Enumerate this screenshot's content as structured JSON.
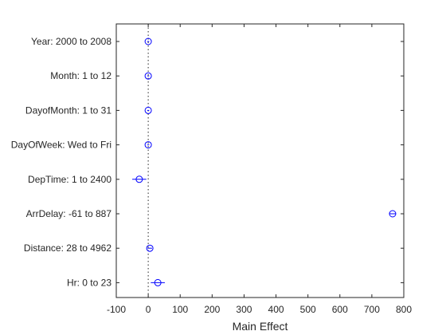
{
  "chart_data": {
    "type": "scatter",
    "title": "",
    "xlabel": "Main Effect",
    "ylabel": "",
    "xlim": [
      -100,
      800
    ],
    "xticks": [
      -100,
      0,
      100,
      200,
      300,
      400,
      500,
      600,
      700,
      800
    ],
    "xtick_labels": [
      "-100",
      "0",
      "100",
      "200",
      "300",
      "400",
      "500",
      "600",
      "700",
      "800"
    ],
    "reference_line_x": 0,
    "grid": false,
    "marker_color": "#0000ff",
    "points": [
      {
        "label": "Year: 2000 to 2008",
        "value": 0,
        "low": -3,
        "high": 3
      },
      {
        "label": "Month: 1 to 12",
        "value": 0,
        "low": -3,
        "high": 3
      },
      {
        "label": "DayofMonth: 1 to 31",
        "value": 0,
        "low": -3,
        "high": 3
      },
      {
        "label": "DayOfWeek: Wed to Fri",
        "value": 0,
        "low": -3,
        "high": 3
      },
      {
        "label": "DepTime: 1 to 2400",
        "value": -28,
        "low": -50,
        "high": -6
      },
      {
        "label": "ArrDelay: -61 to 887",
        "value": 765,
        "low": 755,
        "high": 775
      },
      {
        "label": "Distance: 28 to 4962",
        "value": 5,
        "low": -2,
        "high": 12
      },
      {
        "label": "Hr: 0 to 23",
        "value": 30,
        "low": 8,
        "high": 52
      }
    ]
  }
}
